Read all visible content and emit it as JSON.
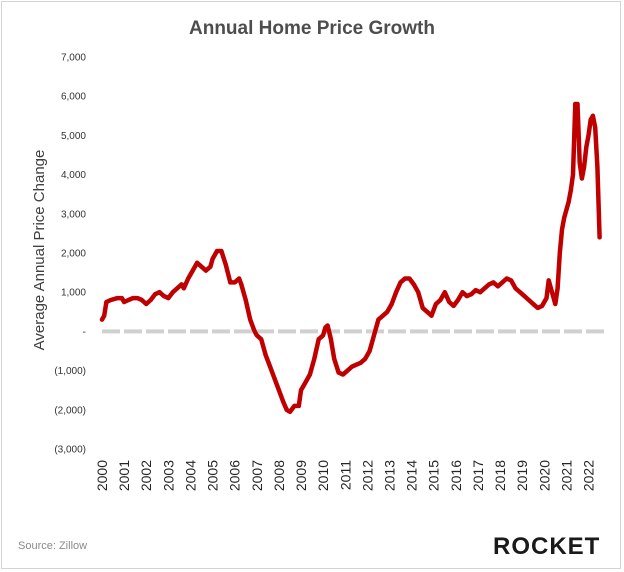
{
  "chart_data": {
    "type": "line",
    "title": "Annual Home Price Growth",
    "ylabel": "Average Annual Price Change",
    "xlabel": "",
    "ylim": [
      -3000,
      7000
    ],
    "y_ticks": [
      7000,
      6000,
      5000,
      4000,
      3000,
      2000,
      1000,
      0,
      -1000,
      -2000,
      -3000
    ],
    "y_tick_labels": [
      "7,000",
      "6,000",
      "5,000",
      "4,000",
      "3,000",
      "2,000",
      "1,000",
      "-",
      "(1,000)",
      "(2,000)",
      "(3,000)"
    ],
    "x_tick_labels": [
      "2000",
      "2001",
      "2002",
      "2003",
      "2004",
      "2005",
      "2006",
      "2007",
      "2008",
      "2009",
      "2010",
      "2011",
      "2012",
      "2013",
      "2014",
      "2015",
      "2016",
      "2017",
      "2018",
      "2019",
      "2020",
      "2021",
      "2022"
    ],
    "xlim": [
      2000,
      2022.7
    ],
    "grid": false,
    "line_color": "#c00000",
    "zero_line_color": "#d0d0d0",
    "series": [
      {
        "x": [
          2000.0,
          2000.1,
          2000.2,
          2000.4,
          2000.7,
          2000.9,
          2001.0,
          2001.2,
          2001.4,
          2001.6,
          2001.8,
          2002.0,
          2002.2,
          2002.4,
          2002.6,
          2002.8,
          2003.0,
          2003.2,
          2003.4,
          2003.6,
          2003.7,
          2003.9,
          2004.1,
          2004.3,
          2004.5,
          2004.7,
          2004.9,
          2005.0,
          2005.2,
          2005.4,
          2005.6,
          2005.8,
          2006.0,
          2006.2,
          2006.3,
          2006.5,
          2006.7,
          2006.9,
          2007.0,
          2007.2,
          2007.4,
          2007.6,
          2007.8,
          2008.0,
          2008.2,
          2008.35,
          2008.5,
          2008.7,
          2008.9,
          2009.0,
          2009.2,
          2009.4,
          2009.6,
          2009.8,
          2009.9,
          2010.0,
          2010.1,
          2010.2,
          2010.35,
          2010.5,
          2010.7,
          2010.9,
          2011.1,
          2011.3,
          2011.5,
          2011.7,
          2011.9,
          2012.1,
          2012.3,
          2012.5,
          2012.7,
          2012.9,
          2013.1,
          2013.3,
          2013.5,
          2013.7,
          2013.9,
          2014.1,
          2014.3,
          2014.5,
          2014.7,
          2014.9,
          2015.1,
          2015.3,
          2015.5,
          2015.7,
          2015.9,
          2016.1,
          2016.3,
          2016.5,
          2016.7,
          2016.9,
          2017.1,
          2017.3,
          2017.5,
          2017.7,
          2017.9,
          2018.1,
          2018.3,
          2018.5,
          2018.7,
          2018.9,
          2019.1,
          2019.3,
          2019.5,
          2019.7,
          2019.9,
          2020.1,
          2020.2,
          2020.35,
          2020.5,
          2020.6,
          2020.7,
          2020.8,
          2020.9,
          2021.0,
          2021.1,
          2021.2,
          2021.3,
          2021.4,
          2021.5,
          2021.6,
          2021.7,
          2021.8,
          2021.9,
          2022.0,
          2022.1,
          2022.2,
          2022.3,
          2022.4,
          2022.5
        ],
        "values": [
          300,
          400,
          750,
          800,
          850,
          850,
          750,
          800,
          850,
          850,
          800,
          700,
          800,
          950,
          1000,
          900,
          850,
          1000,
          1100,
          1200,
          1100,
          1350,
          1550,
          1750,
          1650,
          1550,
          1650,
          1850,
          2050,
          2050,
          1700,
          1250,
          1250,
          1350,
          1200,
          800,
          300,
          0,
          -100,
          -200,
          -600,
          -900,
          -1200,
          -1500,
          -1800,
          -2000,
          -2050,
          -1900,
          -1900,
          -1500,
          -1300,
          -1100,
          -700,
          -200,
          -150,
          -100,
          100,
          150,
          -200,
          -700,
          -1050,
          -1100,
          -1000,
          -900,
          -850,
          -800,
          -700,
          -500,
          -100,
          300,
          400,
          500,
          700,
          1000,
          1250,
          1350,
          1350,
          1200,
          1000,
          600,
          500,
          400,
          700,
          800,
          1000,
          750,
          650,
          800,
          1000,
          900,
          950,
          1050,
          1000,
          1100,
          1200,
          1250,
          1150,
          1250,
          1350,
          1300,
          1100,
          1000,
          900,
          800,
          700,
          600,
          650,
          850,
          1300,
          1000,
          700,
          1100,
          2000,
          2600,
          2900,
          3100,
          3300,
          3600,
          4000,
          5800,
          5800,
          4300,
          3900,
          4200,
          4700,
          5000,
          5400,
          5500,
          5200,
          4200,
          2400
        ]
      }
    ]
  },
  "footer": {
    "source": "Source: Zillow",
    "logo_text": "ROCKET"
  }
}
